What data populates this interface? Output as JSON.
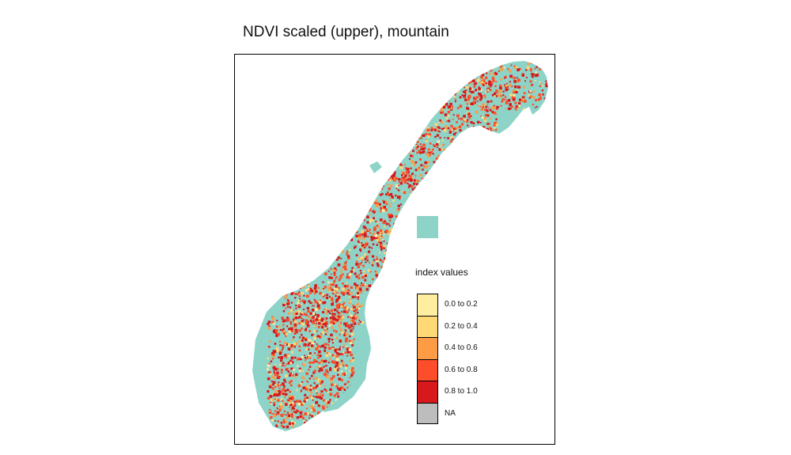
{
  "title": "NDVI scaled (upper), mountain",
  "colors": {
    "land": "#8ed3c7",
    "background": "#ffffff",
    "frame": "#000000"
  },
  "legend": {
    "title": "index values",
    "items": [
      {
        "label": "0.0 to 0.2",
        "color": "#ffeda0"
      },
      {
        "label": "0.2 to 0.4",
        "color": "#fed976"
      },
      {
        "label": "0.4 to 0.6",
        "color": "#fd9c45"
      },
      {
        "label": "0.6 to 0.8",
        "color": "#fc4e2a"
      },
      {
        "label": "0.8 to 1.0",
        "color": "#d7191c"
      },
      {
        "label": "NA",
        "color": "#bdbdbd"
      }
    ]
  }
}
